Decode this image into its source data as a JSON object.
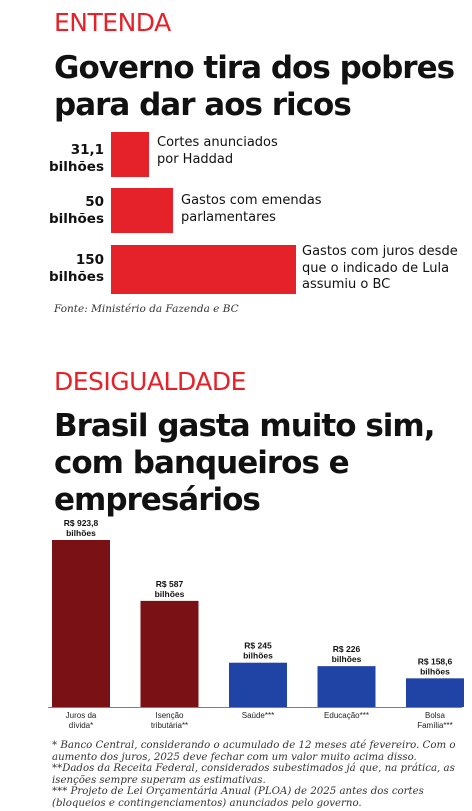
{
  "section1": {
    "kicker": "ENTENDA",
    "title_line1": "Governo tira dos pobres",
    "title_line2": "para dar aos ricos",
    "source": "Fonte: Ministério da Fazenda e BC"
  },
  "section2": {
    "kicker": "DESIGUALDADE",
    "title_line1": "Brasil gasta muito sim,",
    "title_line2": "com banqueiros e",
    "title_line3": "empresários"
  },
  "chart_data": [
    {
      "type": "bar",
      "orientation": "horizontal",
      "unit": "bilhões",
      "categories": [
        "Cortes anunciados por Haddad",
        "Gastos com emendas parlamentares",
        "Gastos com juros desde que o indicado de Lula assumiu o BC"
      ],
      "values": [
        31.1,
        50,
        150
      ],
      "rows": [
        {
          "value_text": "31,1",
          "unit_text": "bilhões",
          "label_line1": "Cortes anunciados",
          "label_line2": "por Haddad",
          "label_line3": ""
        },
        {
          "value_text": "50",
          "unit_text": "bilhões",
          "label_line1": "Gastos com emendas",
          "label_line2": "parlamentares",
          "label_line3": ""
        },
        {
          "value_text": "150",
          "unit_text": "bilhões",
          "label_line1": "Gastos com juros desde",
          "label_line2": "que o indicado de Lula",
          "label_line3": "assumiu o BC"
        }
      ],
      "bar_color": "#e52129"
    },
    {
      "type": "bar",
      "orientation": "vertical",
      "categories": [
        "Juros da dívida*",
        "Isenção tributária**",
        "Saúde***",
        "Educação***",
        "Bolsa Família***"
      ],
      "values": [
        923.8,
        587,
        245,
        226,
        158.6
      ],
      "ylim": [
        0,
        923.8
      ],
      "bars": [
        {
          "label_line1": "Juros da",
          "label_line2": "dívida*",
          "value_text": "R$ 923,8",
          "unit_text": "bilhões",
          "color": "#7a1114"
        },
        {
          "label_line1": "Isenção",
          "label_line2": "tributária**",
          "value_text": "R$ 587",
          "unit_text": "bilhões",
          "color": "#7a1114"
        },
        {
          "label_line1": "Saúde***",
          "label_line2": "",
          "value_text": "R$ 245",
          "unit_text": "bilhões",
          "color": "#2044a6"
        },
        {
          "label_line1": "Educação***",
          "label_line2": "",
          "value_text": "R$ 226",
          "unit_text": "bilhões",
          "color": "#2044a6"
        },
        {
          "label_line1": "Bolsa",
          "label_line2": "Família***",
          "value_text": "R$ 158,6",
          "unit_text": "bilhões",
          "color": "#2044a6"
        }
      ]
    }
  ],
  "colors": {
    "kicker_red": "#e52129",
    "dark_red": "#7a1114",
    "blue": "#2044a6"
  },
  "footnotes": [
    "* Banco Central, considerando o acumulado de 12 meses até fevereiro. Com o aumento dos juros, 2025 deve fechar com um valor muito acima disso.",
    "**Dados da Receita Federal, considerados subestimados já que, na prática, as isenções sempre superam as estimativas.",
    "*** Projeto de Lei Orçamentária Anual (PLOA) de 2025 antes dos cortes (bloqueios e contingenciamentos) anunciados pelo governo."
  ]
}
